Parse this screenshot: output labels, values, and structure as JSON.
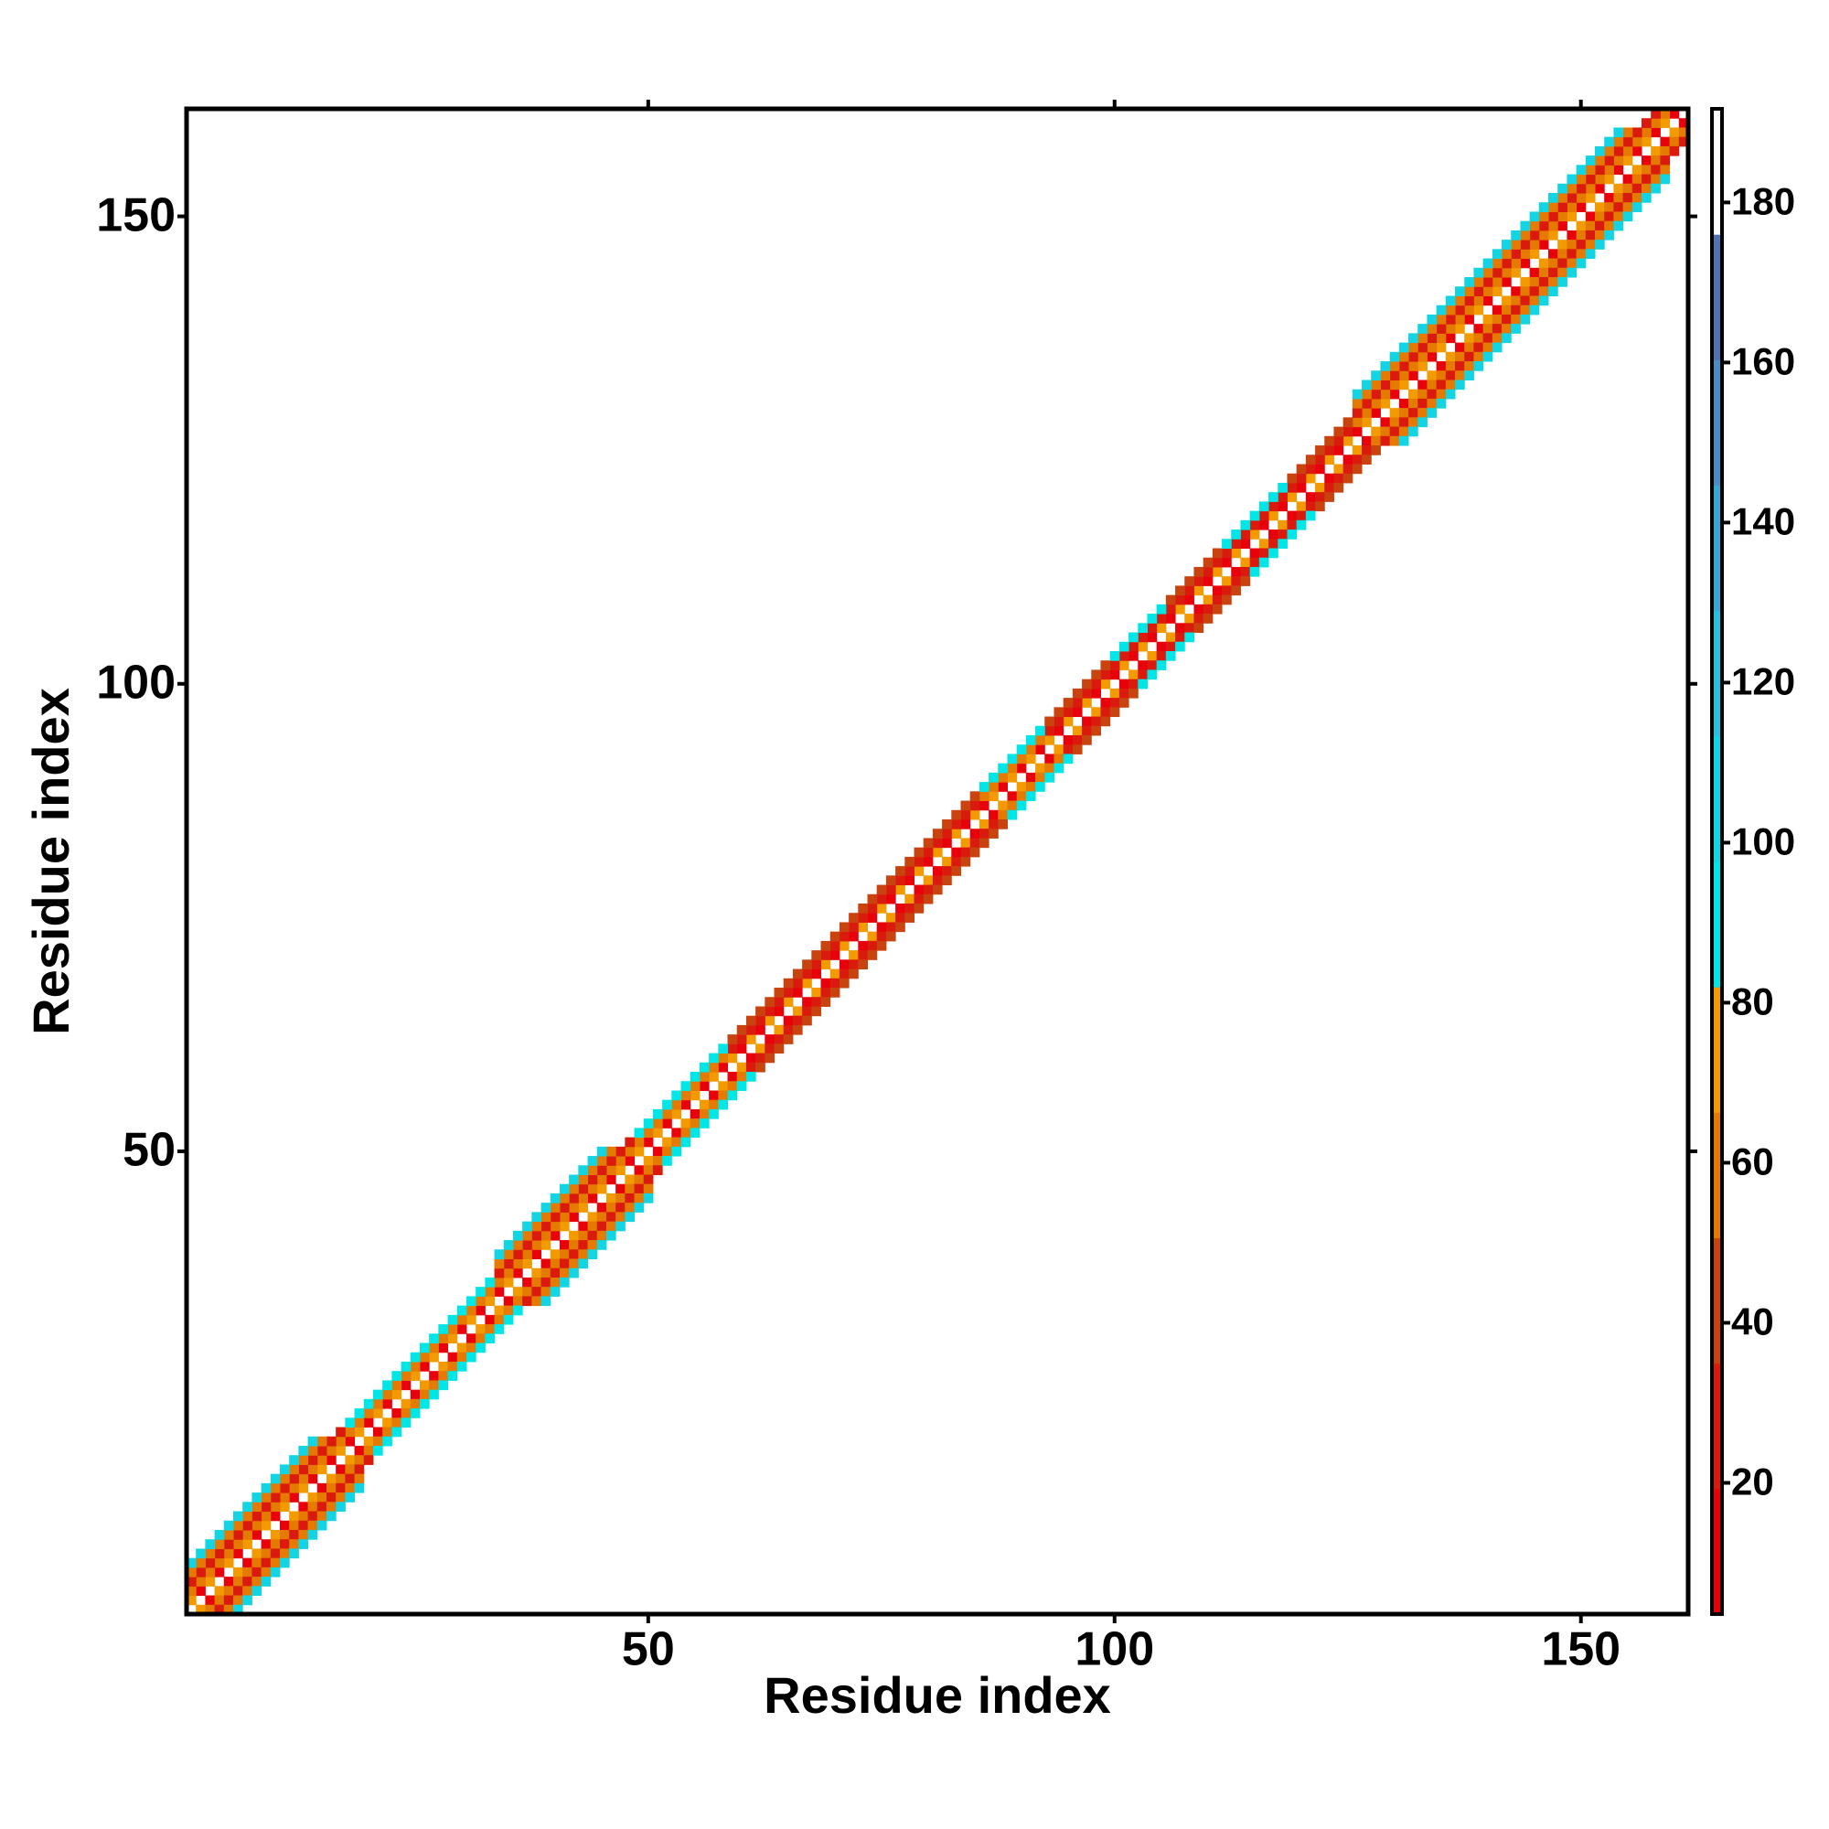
{
  "chart_data": {
    "type": "heatmap",
    "x_label": "Residue index",
    "y_label": "Residue index",
    "xlim": [
      0.5,
      161.5
    ],
    "ylim": [
      0.5,
      161.5
    ],
    "xticks": [
      50,
      100,
      150
    ],
    "yticks": [
      50,
      100,
      150
    ],
    "zlim": [
      3.6,
      191.7
    ],
    "zticks": [
      20,
      40,
      60,
      80,
      100,
      120,
      140,
      160,
      180
    ],
    "colors": [
      "#e8000a",
      "#d91a0c",
      "#c9430f",
      "#e57a00",
      "#f39a00",
      "#00e5e5",
      "#12d4e2",
      "#28c0dc",
      "#3aa6d2",
      "#4a8cc4",
      "#5272b2",
      "#ffffff"
    ],
    "symmetric": true,
    "x": [
      1,
      2,
      3,
      4,
      5,
      6,
      7,
      8,
      9,
      10,
      11,
      12,
      13,
      14,
      15,
      16,
      17,
      18,
      19,
      20,
      21,
      22,
      23,
      24,
      25,
      26,
      27,
      28,
      29,
      30,
      31,
      32,
      33,
      34,
      35,
      36,
      37,
      38,
      39,
      40,
      41,
      42,
      43,
      44,
      45,
      46,
      47,
      48,
      49,
      50,
      51,
      52,
      53,
      54,
      55,
      56,
      57,
      58,
      59,
      60,
      61,
      62,
      63,
      64,
      65,
      66,
      67,
      68,
      69,
      70,
      71,
      72,
      73,
      74,
      75,
      76,
      77,
      78,
      79,
      80,
      81,
      82,
      83,
      84,
      85,
      86,
      87,
      88,
      89,
      90,
      91,
      92,
      93,
      94,
      95,
      96,
      97,
      98,
      99,
      100,
      101,
      102,
      103,
      104,
      105,
      106,
      107,
      108,
      109,
      110,
      111,
      112,
      113,
      114,
      115,
      116,
      117,
      118,
      119,
      120,
      121,
      122,
      123,
      124,
      125,
      126,
      127,
      128,
      129,
      130,
      131,
      132,
      133,
      134,
      135,
      136,
      137,
      138,
      139,
      140,
      141,
      142,
      143,
      144,
      145,
      146,
      147,
      148,
      149,
      150,
      151,
      152,
      153,
      154,
      155,
      156,
      157,
      158,
      159,
      160,
      1,
      2,
      3,
      4,
      5,
      6,
      7,
      8,
      9,
      10,
      11,
      12,
      13,
      14,
      15,
      16,
      17,
      18,
      19,
      20,
      21,
      22,
      23,
      24,
      25,
      26,
      27,
      28,
      29,
      30,
      31,
      32,
      33,
      34,
      35,
      36,
      37,
      38,
      39,
      40,
      41,
      42,
      43,
      44,
      45,
      46,
      47,
      48,
      49,
      50,
      51,
      52,
      53,
      54,
      55,
      56,
      57,
      58,
      59,
      60,
      61,
      62,
      63,
      64,
      65,
      66,
      67,
      68,
      69,
      70,
      71,
      72,
      73,
      74,
      75,
      76,
      77,
      78,
      79,
      80,
      81,
      82,
      83,
      84,
      85,
      86,
      87,
      88,
      89,
      90,
      91,
      92,
      93,
      94,
      95,
      96,
      97,
      98,
      99,
      100,
      101,
      102,
      103,
      104,
      105,
      106,
      107,
      108,
      109,
      110,
      111,
      112,
      113,
      114,
      115,
      116,
      117,
      118,
      119,
      120,
      121,
      122,
      123,
      124,
      125,
      126,
      127,
      128,
      129,
      130,
      131,
      132,
      133,
      134,
      135,
      136,
      137,
      138,
      139,
      140,
      141,
      142,
      143,
      144,
      145,
      146,
      147,
      148,
      149,
      150,
      151,
      152,
      153,
      154,
      155,
      156,
      157,
      158,
      159,
      1,
      2,
      3,
      4,
      5,
      6,
      7,
      8,
      9,
      10,
      11,
      12,
      13,
      14,
      15,
      16,
      17,
      18,
      19,
      20,
      21,
      22,
      23,
      24,
      25,
      26,
      27,
      28,
      29,
      30,
      31,
      32,
      33,
      34,
      35,
      36,
      37,
      38,
      39,
      40,
      41,
      42,
      43,
      44,
      45,
      46,
      47,
      48,
      49,
      50,
      51,
      52,
      53,
      54,
      55,
      56,
      57,
      58,
      59,
      60,
      61,
      62,
      63,
      64,
      65,
      66,
      67,
      68,
      69,
      70,
      71,
      72,
      73,
      74,
      75,
      76,
      77,
      78,
      79,
      80,
      81,
      82,
      83,
      84,
      85,
      86,
      87,
      88,
      89,
      90,
      91,
      92,
      93,
      94,
      95,
      96,
      97,
      98,
      99,
      100,
      101,
      102,
      103,
      104,
      105,
      106,
      107,
      108,
      109,
      110,
      111,
      112,
      113,
      114,
      115,
      116,
      117,
      118,
      119,
      120,
      121,
      122,
      123,
      124,
      125,
      126,
      127,
      128,
      129,
      130,
      131,
      132,
      133,
      134,
      135,
      136,
      137,
      138,
      139,
      140,
      141,
      142,
      143,
      144,
      145,
      146,
      147,
      148,
      149,
      150,
      151,
      152,
      153,
      154,
      155,
      156,
      157,
      158,
      1,
      2,
      3,
      4,
      5,
      6,
      7,
      8,
      9,
      10,
      11,
      12,
      13,
      14,
      15,
      34,
      35,
      36,
      37,
      38,
      39,
      40,
      41,
      42,
      43,
      44,
      45,
      46,
      126,
      127,
      128,
      129,
      130,
      131,
      132,
      133,
      134,
      135,
      136,
      137,
      138,
      139,
      140,
      141,
      142,
      143,
      144,
      145,
      146,
      147,
      148,
      149,
      150,
      151,
      152,
      153,
      154,
      155,
      1,
      2,
      3,
      4,
      5,
      6,
      7,
      8,
      9,
      10,
      11,
      12,
      13,
      14,
      34,
      35,
      36,
      37,
      38,
      39,
      40,
      41,
      42,
      43,
      44,
      45,
      126,
      127,
      128,
      129,
      130,
      131,
      132,
      133,
      134,
      135,
      136,
      137,
      138,
      139,
      140,
      141,
      142,
      143,
      144,
      145,
      146,
      147,
      148,
      149,
      150,
      151,
      152,
      153,
      154
    ],
    "y": [
      2,
      3,
      4,
      5,
      6,
      7,
      8,
      9,
      10,
      11,
      12,
      13,
      14,
      15,
      16,
      17,
      18,
      19,
      20,
      21,
      22,
      23,
      24,
      25,
      26,
      27,
      28,
      29,
      30,
      31,
      32,
      33,
      34,
      35,
      36,
      37,
      38,
      39,
      40,
      41,
      42,
      43,
      44,
      45,
      46,
      47,
      48,
      49,
      50,
      51,
      52,
      53,
      54,
      55,
      56,
      57,
      58,
      59,
      60,
      61,
      62,
      63,
      64,
      65,
      66,
      67,
      68,
      69,
      70,
      71,
      72,
      73,
      74,
      75,
      76,
      77,
      78,
      79,
      80,
      81,
      82,
      83,
      84,
      85,
      86,
      87,
      88,
      89,
      90,
      91,
      92,
      93,
      94,
      95,
      96,
      97,
      98,
      99,
      100,
      101,
      102,
      103,
      104,
      105,
      106,
      107,
      108,
      109,
      110,
      111,
      112,
      113,
      114,
      115,
      116,
      117,
      118,
      119,
      120,
      121,
      122,
      123,
      124,
      125,
      126,
      127,
      128,
      129,
      130,
      131,
      132,
      133,
      134,
      135,
      136,
      137,
      138,
      139,
      140,
      141,
      142,
      143,
      144,
      145,
      146,
      147,
      148,
      149,
      150,
      151,
      152,
      153,
      154,
      155,
      156,
      157,
      158,
      159,
      160,
      161,
      3,
      4,
      5,
      6,
      7,
      8,
      9,
      10,
      11,
      12,
      13,
      14,
      15,
      16,
      17,
      18,
      19,
      20,
      21,
      22,
      23,
      24,
      25,
      26,
      27,
      28,
      29,
      30,
      31,
      32,
      33,
      34,
      35,
      36,
      37,
      38,
      39,
      40,
      41,
      42,
      43,
      44,
      45,
      46,
      47,
      48,
      49,
      50,
      51,
      52,
      53,
      54,
      55,
      56,
      57,
      58,
      59,
      60,
      61,
      62,
      63,
      64,
      65,
      66,
      67,
      68,
      69,
      70,
      71,
      72,
      73,
      74,
      75,
      76,
      77,
      78,
      79,
      80,
      81,
      82,
      83,
      84,
      85,
      86,
      87,
      88,
      89,
      90,
      91,
      92,
      93,
      94,
      95,
      96,
      97,
      98,
      99,
      100,
      101,
      102,
      103,
      104,
      105,
      106,
      107,
      108,
      109,
      110,
      111,
      112,
      113,
      114,
      115,
      116,
      117,
      118,
      119,
      120,
      121,
      122,
      123,
      124,
      125,
      126,
      127,
      128,
      129,
      130,
      131,
      132,
      133,
      134,
      135,
      136,
      137,
      138,
      139,
      140,
      141,
      142,
      143,
      144,
      145,
      146,
      147,
      148,
      149,
      150,
      151,
      152,
      153,
      154,
      155,
      156,
      157,
      158,
      159,
      160,
      161,
      4,
      5,
      6,
      7,
      8,
      9,
      10,
      11,
      12,
      13,
      14,
      15,
      16,
      17,
      18,
      19,
      20,
      21,
      22,
      23,
      24,
      25,
      26,
      27,
      28,
      29,
      30,
      31,
      32,
      33,
      34,
      35,
      36,
      37,
      38,
      39,
      40,
      41,
      42,
      43,
      44,
      45,
      46,
      47,
      48,
      49,
      50,
      51,
      52,
      53,
      54,
      55,
      56,
      57,
      58,
      59,
      60,
      61,
      62,
      63,
      64,
      65,
      66,
      67,
      68,
      69,
      70,
      71,
      72,
      73,
      74,
      75,
      76,
      77,
      78,
      79,
      80,
      81,
      82,
      83,
      84,
      85,
      86,
      87,
      88,
      89,
      90,
      91,
      92,
      93,
      94,
      95,
      96,
      97,
      98,
      99,
      100,
      101,
      102,
      103,
      104,
      105,
      106,
      107,
      108,
      109,
      110,
      111,
      112,
      113,
      114,
      115,
      116,
      117,
      118,
      119,
      120,
      121,
      122,
      123,
      124,
      125,
      126,
      127,
      128,
      129,
      130,
      131,
      132,
      133,
      134,
      135,
      136,
      137,
      138,
      139,
      140,
      141,
      142,
      143,
      144,
      145,
      146,
      147,
      148,
      149,
      150,
      151,
      152,
      153,
      154,
      155,
      156,
      157,
      158,
      159,
      160,
      161,
      5,
      6,
      7,
      8,
      9,
      10,
      11,
      12,
      13,
      14,
      15,
      16,
      17,
      18,
      19,
      38,
      39,
      40,
      41,
      42,
      43,
      44,
      45,
      46,
      47,
      48,
      49,
      50,
      130,
      131,
      132,
      133,
      134,
      135,
      136,
      137,
      138,
      139,
      140,
      141,
      142,
      143,
      144,
      145,
      146,
      147,
      148,
      149,
      150,
      151,
      152,
      153,
      154,
      155,
      156,
      157,
      158,
      159,
      6,
      7,
      8,
      9,
      10,
      11,
      12,
      13,
      14,
      15,
      16,
      17,
      18,
      19,
      39,
      40,
      41,
      42,
      43,
      44,
      45,
      46,
      47,
      48,
      49,
      50,
      131,
      132,
      133,
      134,
      135,
      136,
      137,
      138,
      139,
      140,
      141,
      142,
      143,
      144,
      145,
      146,
      147,
      148,
      149,
      150,
      151,
      152,
      153,
      154,
      155,
      156,
      157,
      158,
      159
    ],
    "values": [
      68,
      15,
      68,
      15,
      68,
      15,
      68,
      15,
      68,
      15,
      68,
      15,
      68,
      15,
      68,
      15,
      68,
      15,
      68,
      15,
      68,
      15,
      68,
      15,
      68,
      15,
      68,
      15,
      68,
      15,
      68,
      15,
      68,
      15,
      68,
      15,
      68,
      15,
      68,
      15,
      68,
      15,
      68,
      15,
      68,
      15,
      68,
      15,
      68,
      15,
      68,
      15,
      68,
      15,
      68,
      15,
      68,
      15,
      68,
      15,
      68,
      15,
      68,
      15,
      68,
      15,
      68,
      15,
      68,
      15,
      68,
      15,
      68,
      15,
      68,
      15,
      68,
      15,
      68,
      15,
      68,
      15,
      68,
      15,
      68,
      15,
      68,
      15,
      68,
      15,
      68,
      15,
      68,
      15,
      68,
      15,
      68,
      15,
      68,
      15,
      68,
      15,
      68,
      15,
      68,
      15,
      68,
      15,
      68,
      15,
      68,
      15,
      68,
      15,
      68,
      15,
      68,
      15,
      68,
      15,
      68,
      15,
      68,
      15,
      68,
      15,
      68,
      15,
      68,
      15,
      68,
      15,
      68,
      15,
      68,
      15,
      68,
      15,
      68,
      15,
      68,
      15,
      68,
      15,
      68,
      15,
      68,
      15,
      68,
      15,
      68,
      15,
      68,
      15,
      68,
      15,
      68,
      15,
      68,
      15,
      58,
      58,
      58,
      58,
      58,
      58,
      58,
      58,
      58,
      58,
      58,
      58,
      58,
      58,
      58,
      58,
      58,
      58,
      58,
      58,
      58,
      58,
      58,
      58,
      58,
      58,
      58,
      58,
      58,
      58,
      58,
      58,
      58,
      58,
      58,
      58,
      58,
      58,
      58,
      58,
      58,
      58,
      58,
      58,
      58,
      58,
      58,
      58,
      58,
      58,
      58,
      58,
      58,
      58,
      58,
      58,
      58,
      58,
      28,
      28,
      28,
      28,
      28,
      28,
      28,
      28,
      28,
      28,
      28,
      28,
      28,
      28,
      28,
      28,
      28,
      28,
      28,
      28,
      28,
      28,
      28,
      28,
      28,
      28,
      28,
      58,
      58,
      58,
      58,
      58,
      58,
      58,
      28,
      28,
      28,
      28,
      28,
      28,
      28,
      28,
      28,
      28,
      28,
      28,
      28,
      28,
      28,
      28,
      28,
      28,
      28,
      28,
      28,
      28,
      28,
      28,
      28,
      28,
      28,
      28,
      28,
      28,
      28,
      28,
      28,
      58,
      58,
      58,
      58,
      58,
      58,
      58,
      58,
      58,
      58,
      58,
      58,
      58,
      58,
      58,
      58,
      58,
      58,
      58,
      58,
      58,
      58,
      58,
      58,
      58,
      58,
      58,
      58,
      58,
      58,
      58,
      58,
      58,
      58,
      22,
      22,
      22,
      22,
      22,
      22,
      22,
      22,
      22,
      22,
      22,
      22,
      22,
      22,
      22,
      22,
      22,
      96,
      96,
      96,
      96,
      96,
      96,
      96,
      96,
      96,
      96,
      96,
      96,
      96,
      96,
      96,
      96,
      22,
      22,
      22,
      22,
      22,
      22,
      22,
      22,
      22,
      22,
      22,
      22,
      22,
      22,
      22,
      96,
      96,
      96,
      96,
      96,
      96,
      96,
      96,
      96,
      96,
      42,
      42,
      42,
      42,
      42,
      42,
      42,
      42,
      42,
      42,
      42,
      42,
      42,
      42,
      42,
      42,
      42,
      42,
      42,
      42,
      42,
      42,
      42,
      42,
      42,
      42,
      42,
      96,
      96,
      96,
      96,
      96,
      96,
      96,
      42,
      42,
      42,
      42,
      42,
      42,
      42,
      96,
      96,
      96,
      96,
      96,
      96,
      42,
      42,
      42,
      42,
      42,
      42,
      96,
      96,
      96,
      96,
      96,
      96,
      96,
      42,
      42,
      42,
      42,
      42,
      42,
      42,
      22,
      22,
      22,
      22,
      22,
      22,
      22,
      22,
      22,
      22,
      22,
      22,
      22,
      22,
      22,
      22,
      22,
      22,
      22,
      22,
      22,
      22,
      22,
      22,
      22,
      22,
      22,
      22,
      22,
      22,
      22,
      22,
      22,
      64,
      64,
      64,
      64,
      64,
      64,
      64,
      64,
      64,
      64,
      64,
      64,
      64,
      64,
      64,
      64,
      64,
      64,
      64,
      64,
      64,
      64,
      64,
      64,
      64,
      64,
      64,
      64,
      64,
      64,
      64,
      64,
      64,
      64,
      64,
      64,
      64,
      64,
      64,
      64,
      64,
      64,
      64,
      64,
      64,
      64,
      64,
      64,
      64,
      64,
      64,
      64,
      64,
      64,
      64,
      64,
      64,
      64,
      108,
      108,
      108,
      108,
      108,
      108,
      108,
      108,
      108,
      108,
      108,
      108,
      108,
      108,
      108,
      108,
      108,
      108,
      108,
      108,
      108,
      108,
      108,
      108,
      108,
      108,
      108,
      108,
      108,
      108,
      108,
      108,
      108,
      108,
      108,
      108,
      108,
      108,
      108,
      108,
      108,
      108,
      108,
      108,
      108,
      108,
      108,
      108,
      108,
      108,
      108,
      108,
      108,
      108,
      108
    ]
  }
}
